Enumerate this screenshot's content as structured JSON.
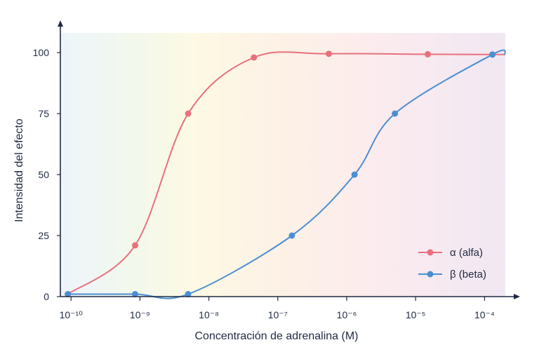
{
  "chart_data": {
    "type": "line",
    "title": "",
    "xlabel": "Concentración de adrenalina (M)",
    "ylabel": "Intensidad del efecto",
    "x_scale": "log",
    "xlim": [
      7e-11,
      0.0002
    ],
    "ylim": [
      0,
      100
    ],
    "x_ticks": [
      1e-10,
      1e-09,
      1e-08,
      1e-07,
      1e-06,
      1e-05,
      0.0001
    ],
    "x_tick_labels": [
      "10⁻¹⁰",
      "10⁻⁹",
      "10⁻⁸",
      "10⁻⁷",
      "10⁻⁶",
      "10⁻⁵",
      "10⁻⁴"
    ],
    "y_ticks": [
      0,
      25,
      50,
      75,
      100
    ],
    "y_tick_labels": [
      "0",
      "25",
      "50",
      "75",
      "100"
    ],
    "grid": false,
    "legend_position": "bottom-right",
    "series": [
      {
        "name": "α (alfa)",
        "color": "#e8707c",
        "x": [
          9e-11,
          8.5e-10,
          5e-09,
          4.5e-08,
          5.5e-07,
          1.5e-05,
          0.00013
        ],
        "y": [
          1,
          21,
          75,
          98,
          99.5,
          99.3,
          99.2
        ]
      },
      {
        "name": "β (beta)",
        "color": "#4b8fd1",
        "x": [
          9e-11,
          8.5e-10,
          5e-09,
          1.6e-07,
          1.3e-06,
          5e-06,
          0.00013
        ],
        "y": [
          1,
          1,
          1,
          25,
          50,
          75,
          99.2
        ]
      }
    ]
  }
}
